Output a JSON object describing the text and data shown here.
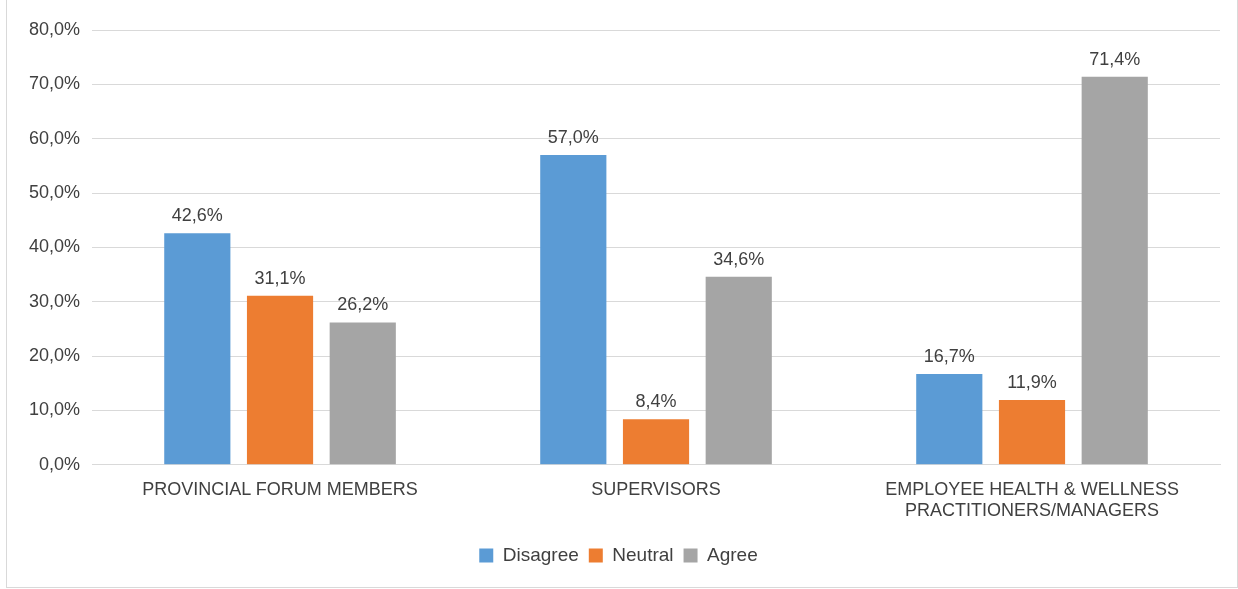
{
  "chart_data": {
    "type": "bar",
    "categories": [
      "PROVINCIAL FORUM MEMBERS",
      "SUPERVISORS",
      "EMPLOYEE HEALTH & WELLNESS PRACTITIONERS/MANAGERS"
    ],
    "series": [
      {
        "name": "Disagree",
        "color": "#5b9bd5",
        "values": [
          42.6,
          57.0,
          16.7
        ],
        "value_labels": [
          "42,6%",
          "57,0%",
          "16,7%"
        ]
      },
      {
        "name": "Neutral",
        "color": "#ed7d31",
        "values": [
          31.1,
          8.4,
          11.9
        ],
        "value_labels": [
          "31,1%",
          "8,4%",
          "11,9%"
        ]
      },
      {
        "name": "Agree",
        "color": "#a5a5a5",
        "values": [
          26.2,
          34.6,
          71.4
        ],
        "value_labels": [
          "26,2%",
          "34,6%",
          "71,4%"
        ]
      }
    ],
    "ylim": [
      0,
      80
    ],
    "yticks": [
      {
        "value": 0,
        "label": "0,0%"
      },
      {
        "value": 10,
        "label": "10,0%"
      },
      {
        "value": 20,
        "label": "20,0%"
      },
      {
        "value": 30,
        "label": "30,0%"
      },
      {
        "value": 40,
        "label": "40,0%"
      },
      {
        "value": 50,
        "label": "50,0%"
      },
      {
        "value": 60,
        "label": "60,0%"
      },
      {
        "value": 70,
        "label": "70,0%"
      },
      {
        "value": 80,
        "label": "80,0%"
      }
    ],
    "grid": "y",
    "legend": "bottom"
  }
}
